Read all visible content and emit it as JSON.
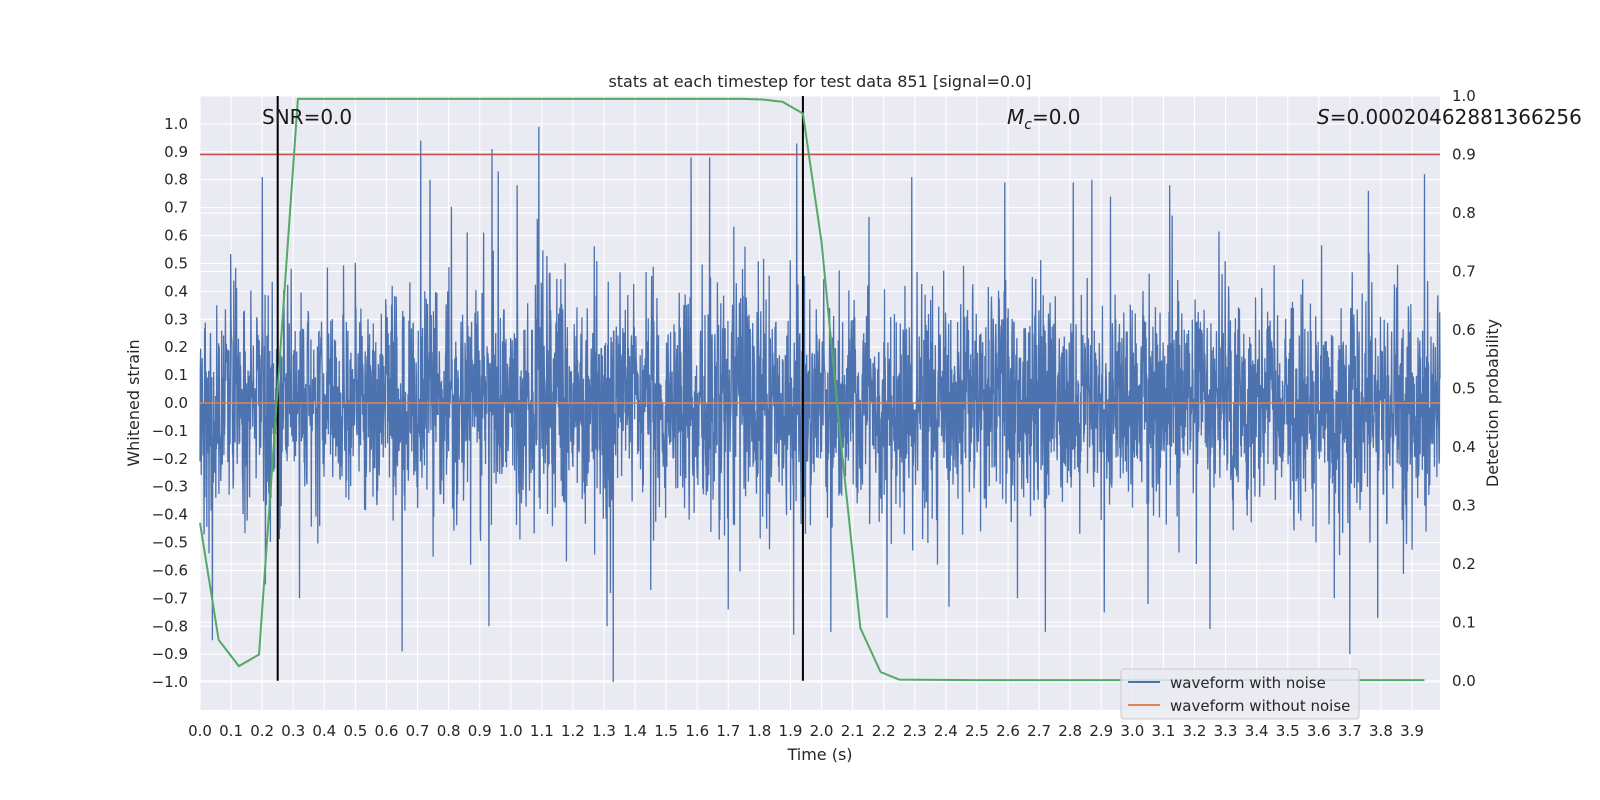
{
  "chart_data": {
    "type": "line",
    "title": "stats at each timestep for test data 851 [signal=0.0]",
    "xlabel": "Time (s)",
    "ylabel": "Whitened strain",
    "y2label": "Detection probability",
    "xlim": [
      0.0,
      3.99
    ],
    "ylim": [
      -1.1,
      1.1
    ],
    "y2lim": [
      -0.05,
      1.0
    ],
    "xticks": [
      0.0,
      0.1,
      0.2,
      0.3,
      0.4,
      0.5,
      0.6,
      0.7,
      0.8,
      0.9,
      1.0,
      1.1,
      1.2,
      1.3,
      1.4,
      1.5,
      1.6,
      1.7,
      1.8,
      1.9,
      2.0,
      2.1,
      2.2,
      2.3,
      2.4,
      2.5,
      2.6,
      2.7,
      2.8,
      2.9,
      3.0,
      3.1,
      3.2,
      3.3,
      3.4,
      3.5,
      3.6,
      3.7,
      3.8,
      3.9
    ],
    "yticks": [
      -1.0,
      -0.9,
      -0.8,
      -0.7,
      -0.6,
      -0.5,
      -0.4,
      -0.3,
      -0.2,
      -0.1,
      0.0,
      0.1,
      0.2,
      0.3,
      0.4,
      0.5,
      0.6,
      0.7,
      0.8,
      0.9,
      1.0
    ],
    "y2ticks": [
      0.0,
      0.1,
      0.2,
      0.3,
      0.4,
      0.5,
      0.6,
      0.7,
      0.8,
      0.9,
      1.0
    ],
    "grid": true,
    "legend_position": "lower-right",
    "series": [
      {
        "name": "waveform with noise",
        "color": "#4c72b0",
        "style": "dense noise, amplitude mostly within ±0.45 with spikes to ±1.0"
      },
      {
        "name": "waveform without noise",
        "color": "#dd8452",
        "values_constant": 0.0
      }
    ],
    "detection_probability": {
      "color": "#55a868",
      "x": [
        0.0,
        0.06,
        0.125,
        0.19,
        0.25,
        0.315,
        0.38,
        0.5,
        1.0,
        1.5,
        1.75,
        1.81,
        1.875,
        1.94,
        2.0,
        2.06,
        2.125,
        2.19,
        2.25,
        2.5,
        3.0,
        3.5,
        3.94
      ],
      "y": [
        0.27,
        0.07,
        0.025,
        0.045,
        0.5,
        0.995,
        0.995,
        0.995,
        0.995,
        0.995,
        0.995,
        0.994,
        0.99,
        0.97,
        0.75,
        0.42,
        0.09,
        0.015,
        0.002,
        0.001,
        0.001,
        0.001,
        0.001
      ]
    },
    "threshold_line": {
      "y2": 0.9,
      "color": "#c44e52"
    },
    "vertical_markers": [
      0.25,
      1.94
    ],
    "spike_points": [
      [
        0.04,
        -0.85
      ],
      [
        0.2,
        0.81
      ],
      [
        0.21,
        -0.65
      ],
      [
        0.32,
        -0.7
      ],
      [
        0.71,
        0.94
      ],
      [
        0.74,
        0.8
      ],
      [
        0.93,
        -0.8
      ],
      [
        0.94,
        0.91
      ],
      [
        0.96,
        0.83
      ],
      [
        1.09,
        0.99
      ],
      [
        1.33,
        -1.0
      ],
      [
        1.31,
        -0.8
      ],
      [
        1.58,
        0.88
      ],
      [
        1.64,
        0.88
      ],
      [
        1.91,
        -0.83
      ],
      [
        1.92,
        0.93
      ],
      [
        2.03,
        -0.82
      ],
      [
        2.21,
        -0.77
      ],
      [
        2.29,
        0.81
      ],
      [
        2.59,
        0.79
      ],
      [
        2.63,
        -0.7
      ],
      [
        2.72,
        -0.82
      ],
      [
        2.81,
        0.79
      ],
      [
        2.87,
        0.8
      ],
      [
        2.91,
        -0.75
      ],
      [
        2.93,
        0.74
      ],
      [
        3.12,
        0.78
      ],
      [
        3.25,
        0.78
      ],
      [
        3.25,
        -0.81
      ],
      [
        3.65,
        -0.7
      ],
      [
        3.7,
        -0.9
      ],
      [
        3.76,
        0.76
      ],
      [
        3.79,
        -0.77
      ],
      [
        3.94,
        0.82
      ],
      [
        0.65,
        -0.89
      ],
      [
        1.02,
        0.78
      ],
      [
        1.45,
        -0.67
      ],
      [
        1.7,
        -0.74
      ],
      [
        2.41,
        -0.73
      ],
      [
        3.05,
        -0.72
      ]
    ],
    "annotations": [
      {
        "prefix": "SNR",
        "value": "=0.0",
        "x": 0.2
      },
      {
        "prefix": "M",
        "subscript": "c",
        "value": "=0.0",
        "x": 2.6
      },
      {
        "prefix": "S",
        "value": "=0.00020462881366256",
        "x": 3.6
      }
    ]
  }
}
